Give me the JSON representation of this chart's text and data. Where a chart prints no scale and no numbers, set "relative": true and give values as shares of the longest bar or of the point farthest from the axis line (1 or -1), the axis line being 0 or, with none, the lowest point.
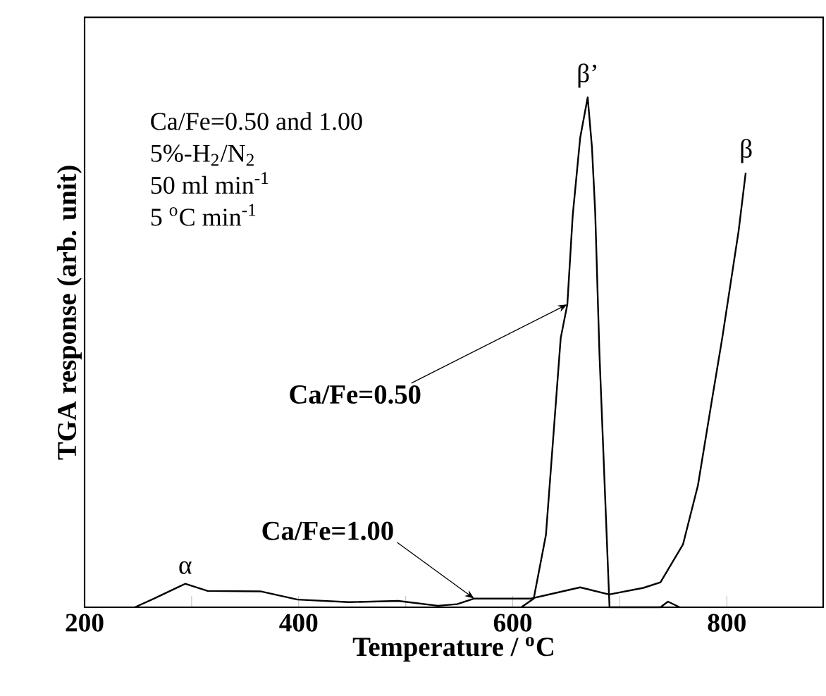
{
  "chart_data": {
    "type": "line",
    "relative": true,
    "xlabel": "Temperature / $^{o}$C",
    "ylabel": "TGA response (arb. unit)",
    "xlim": [
      200,
      890
    ],
    "xticks": [
      200,
      {
        "value": 300,
        "label": null
      },
      400,
      {
        "value": 500,
        "label": null
      },
      600,
      {
        "value": 700,
        "label": null
      },
      800
    ],
    "series": [
      {
        "name": "Ca/Fe=0.50",
        "color": "#000000",
        "x": [
          608,
          619.6,
          631,
          644.8,
          651,
          656,
          663,
          670,
          674,
          677,
          681,
          690.4,
          738,
          745,
          756
        ],
        "values": [
          0,
          0.017,
          0.142,
          0.528,
          0.594,
          0.768,
          0.921,
          1,
          0.902,
          0.776,
          0.497,
          0,
          0,
          0.011,
          0
        ]
      },
      {
        "name": "Ca/Fe=1.00",
        "color": "#000000",
        "x": [
          247,
          265,
          294,
          315,
          365,
          399,
          447,
          493,
          530,
          548,
          564,
          617,
          663,
          690,
          722,
          738,
          759,
          773,
          786.5,
          795.7,
          811,
          817.6
        ],
        "values": [
          0,
          0.017,
          0.046,
          0.032,
          0.031,
          0.015,
          0.01,
          0.0125,
          0.003,
          0.006,
          0.017,
          0.017,
          0.039,
          0.025,
          0.038,
          0.049,
          0.123,
          0.239,
          0.412,
          0.528,
          0.738,
          0.852
        ]
      }
    ],
    "annotations": [
      {
        "text": "α",
        "x": 294,
        "y": 0.046
      },
      {
        "text": "β’",
        "x": 670,
        "y": 1
      },
      {
        "text": "β",
        "x": 818,
        "y": 0.852
      },
      "Ca/Fe=0.50 and 1.00",
      "5%-H$_{2}$/N$_{2}$",
      "50 ml min$^{-1}$",
      "5 $^{o}$C min$^{-1}$"
    ],
    "grid": false,
    "marker": "none",
    "line_style": "solid"
  }
}
